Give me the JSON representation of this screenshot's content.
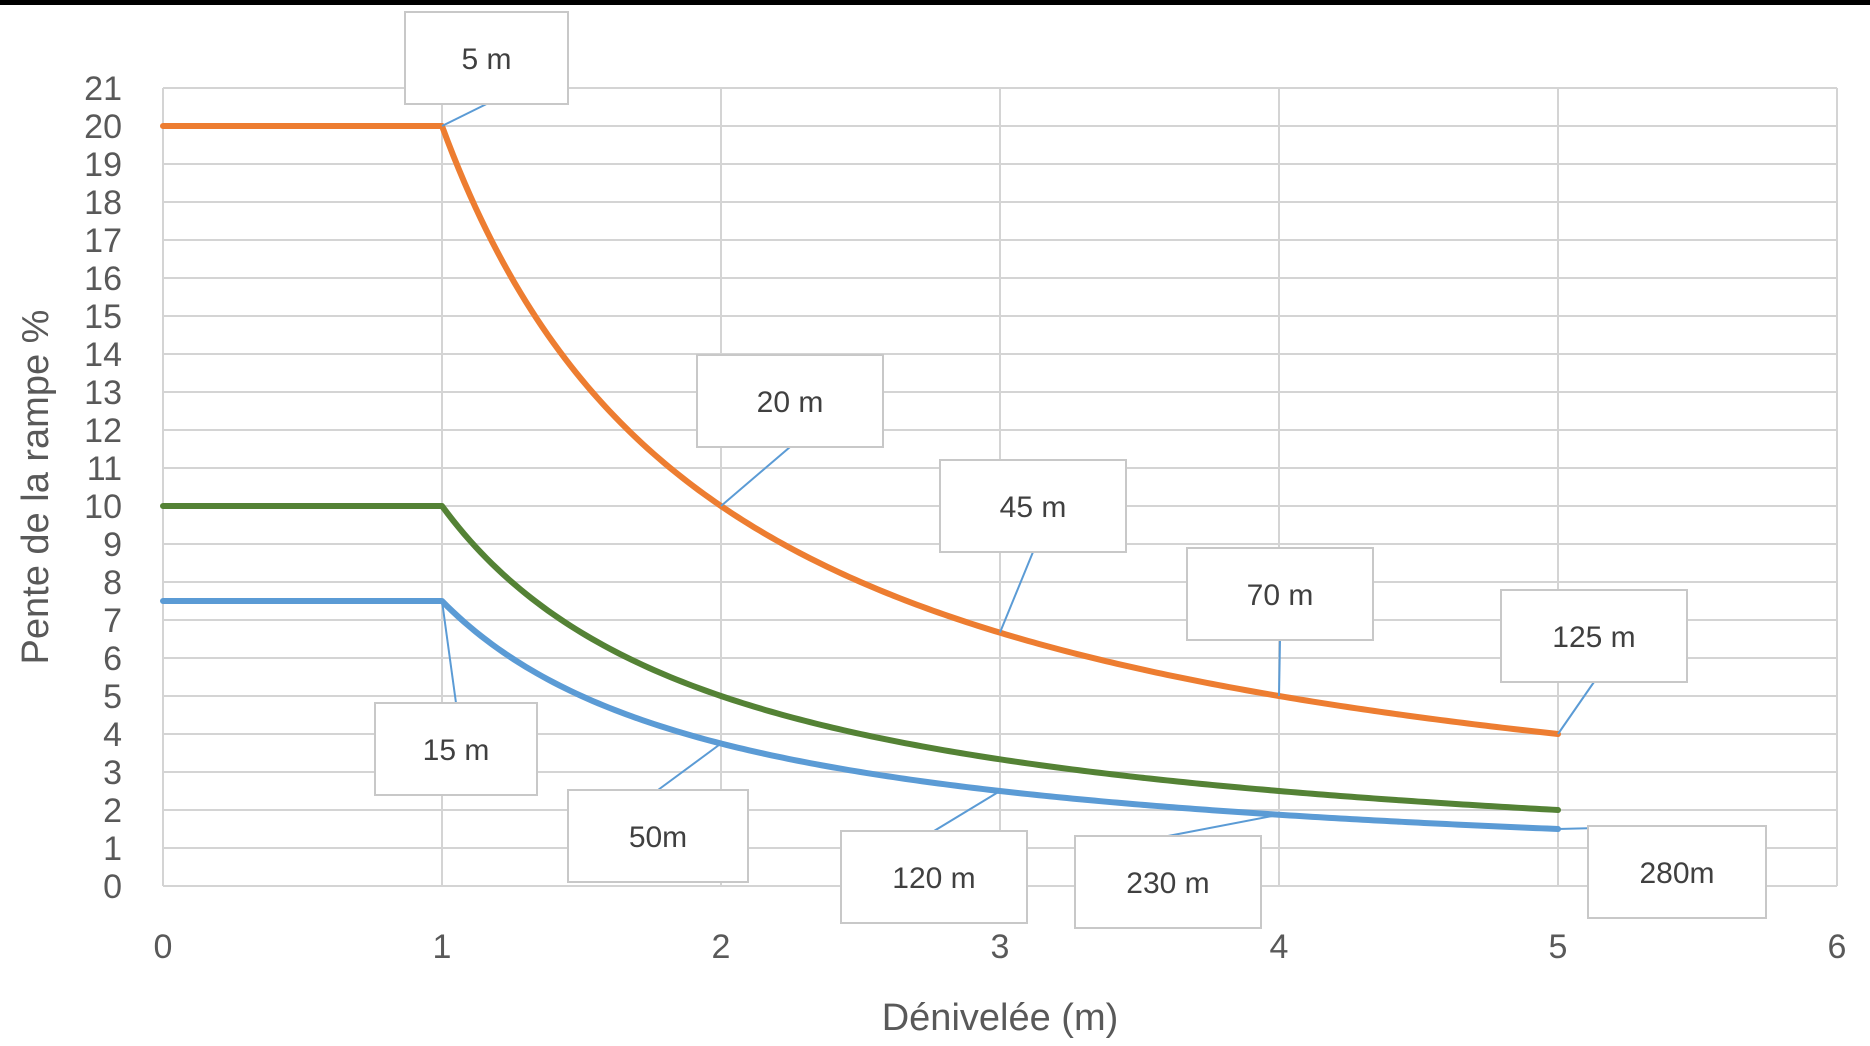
{
  "chart_data": {
    "type": "line",
    "xlabel": "Dénivelée (m)",
    "ylabel": "Pente de la rampe %",
    "xlim": [
      0,
      6
    ],
    "ylim": [
      0,
      21
    ],
    "x_ticks": [
      "0",
      "1",
      "2",
      "3",
      "4",
      "5",
      "6"
    ],
    "y_ticks": [
      "0",
      "1",
      "2",
      "3",
      "4",
      "5",
      "6",
      "7",
      "8",
      "9",
      "10",
      "11",
      "12",
      "13",
      "14",
      "15",
      "16",
      "17",
      "18",
      "19",
      "20",
      "21"
    ],
    "grid": true,
    "series": [
      {
        "color": "#ED7D31",
        "points": [
          [
            0,
            20
          ],
          [
            1,
            20
          ],
          [
            1.25,
            16
          ],
          [
            1.5,
            13.33
          ],
          [
            1.75,
            11.43
          ],
          [
            2,
            10
          ],
          [
            2.5,
            8
          ],
          [
            3,
            6.67
          ],
          [
            3.5,
            5.71
          ],
          [
            4,
            5
          ],
          [
            4.5,
            4.44
          ],
          [
            5,
            4
          ]
        ]
      },
      {
        "color": "#548235",
        "points": [
          [
            0,
            10
          ],
          [
            1,
            10
          ],
          [
            1.25,
            8
          ],
          [
            1.5,
            6.67
          ],
          [
            1.75,
            5.71
          ],
          [
            2,
            5
          ],
          [
            2.5,
            4
          ],
          [
            3,
            3.33
          ],
          [
            3.5,
            2.86
          ],
          [
            4,
            2.5
          ],
          [
            4.5,
            2.22
          ],
          [
            5,
            2
          ]
        ]
      },
      {
        "color": "#5B9BD5",
        "points": [
          [
            0,
            7.5
          ],
          [
            1,
            7.5
          ],
          [
            1.25,
            6
          ],
          [
            1.5,
            5
          ],
          [
            1.75,
            4.29
          ],
          [
            2,
            3.75
          ],
          [
            2.5,
            3
          ],
          [
            3,
            2.5
          ],
          [
            3.5,
            2.14
          ],
          [
            4,
            1.875
          ],
          [
            4.5,
            1.67
          ],
          [
            5,
            1.5
          ]
        ]
      }
    ],
    "annotations": [
      {
        "text": "5 m",
        "x": 1,
        "y": 20
      },
      {
        "text": "20 m",
        "x": 2,
        "y": 10
      },
      {
        "text": "45 m",
        "x": 3,
        "y": 6.67
      },
      {
        "text": "70 m",
        "x": 4,
        "y": 5
      },
      {
        "text": "125 m",
        "x": 5,
        "y": 4
      },
      {
        "text": "15 m",
        "x": 1,
        "y": 7.5
      },
      {
        "text": "50m",
        "x": 2,
        "y": 3.75
      },
      {
        "text": "120 m",
        "x": 3,
        "y": 2.5
      },
      {
        "text": "230 m",
        "x": 4,
        "y": 1.875
      },
      {
        "text": "280m",
        "x": 5,
        "y": 1.5
      }
    ]
  }
}
